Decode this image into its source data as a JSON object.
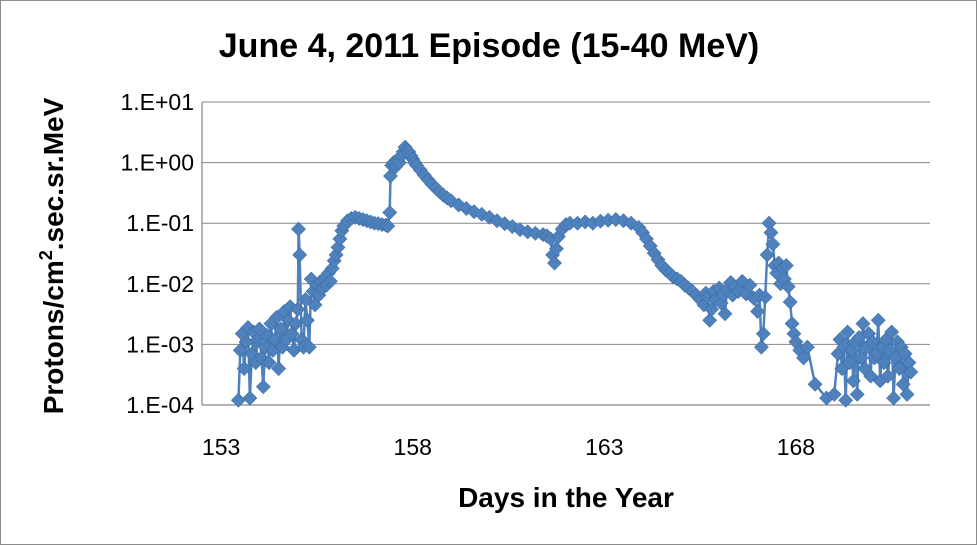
{
  "chart_data": {
    "type": "scatter",
    "title": "June 4, 2011 Episode (15-40 MeV)",
    "xlabel": "Days in the Year",
    "ylabel": "Protons/cm2.sec.sr.MeV",
    "ylabel_parts": {
      "before": "Protons/cm",
      "sup": "2",
      "after": ".sec.sr.MeV"
    },
    "xlim": [
      152.5,
      171.5
    ],
    "ylim": [
      0.0001,
      10
    ],
    "y_scale": "log",
    "x_ticks": [
      {
        "value": 153,
        "label": "153"
      },
      {
        "value": 158,
        "label": "158"
      },
      {
        "value": 163,
        "label": "163"
      },
      {
        "value": 168,
        "label": "168"
      }
    ],
    "y_ticks": [
      {
        "value": 10,
        "label": "1.E+01"
      },
      {
        "value": 1,
        "label": "1.E+00"
      },
      {
        "value": 0.1,
        "label": "1.E-01"
      },
      {
        "value": 0.01,
        "label": "1.E-02"
      },
      {
        "value": 0.001,
        "label": "1.E-03"
      },
      {
        "value": 0.0001,
        "label": "1.E-04"
      }
    ],
    "grid": {
      "horizontal": true,
      "vertical": false
    },
    "legend": "none",
    "series_color": "#4f81bd",
    "series": [
      {
        "values": [
          [
            153.45,
            0.00012
          ],
          [
            153.5,
            0.0008
          ],
          [
            153.55,
            0.0015
          ],
          [
            153.6,
            0.0004
          ],
          [
            153.65,
            0.0011
          ],
          [
            153.7,
            0.0019
          ],
          [
            153.75,
            0.00013
          ],
          [
            153.8,
            0.0007
          ],
          [
            153.85,
            0.0016
          ],
          [
            153.9,
            0.0005
          ],
          [
            153.95,
            0.0012
          ],
          [
            154.0,
            0.0018
          ],
          [
            154.05,
            0.0006
          ],
          [
            154.1,
            0.0002
          ],
          [
            154.15,
            0.0009
          ],
          [
            154.2,
            0.0014
          ],
          [
            154.25,
            0.0005
          ],
          [
            154.3,
            0.0022
          ],
          [
            154.35,
            0.0008
          ],
          [
            154.4,
            0.0012
          ],
          [
            154.45,
            0.0028
          ],
          [
            154.5,
            0.0004
          ],
          [
            154.55,
            0.0018
          ],
          [
            154.6,
            0.0009
          ],
          [
            154.65,
            0.0035
          ],
          [
            154.7,
            0.0012
          ],
          [
            154.75,
            0.0025
          ],
          [
            154.8,
            0.0042
          ],
          [
            154.85,
            0.0015
          ],
          [
            154.9,
            0.0008
          ],
          [
            154.95,
            0.0022
          ],
          [
            155.0,
            0.0038
          ],
          [
            155.02,
            0.08
          ],
          [
            155.05,
            0.03
          ],
          [
            155.1,
            0.0012
          ],
          [
            155.15,
            0.0009
          ],
          [
            155.2,
            0.0055
          ],
          [
            155.25,
            0.0025
          ],
          [
            155.3,
            0.0009
          ],
          [
            155.35,
            0.012
          ],
          [
            155.4,
            0.0075
          ],
          [
            155.45,
            0.0045
          ],
          [
            155.5,
            0.0095
          ],
          [
            155.55,
            0.0065
          ],
          [
            155.6,
            0.011
          ],
          [
            155.65,
            0.0085
          ],
          [
            155.7,
            0.012
          ],
          [
            155.75,
            0.0095
          ],
          [
            155.8,
            0.015
          ],
          [
            155.85,
            0.011
          ],
          [
            155.9,
            0.018
          ],
          [
            155.95,
            0.024
          ],
          [
            156.0,
            0.03
          ],
          [
            156.05,
            0.04
          ],
          [
            156.1,
            0.055
          ],
          [
            156.15,
            0.075
          ],
          [
            156.2,
            0.09
          ],
          [
            156.3,
            0.11
          ],
          [
            156.4,
            0.12
          ],
          [
            156.5,
            0.125
          ],
          [
            156.6,
            0.12
          ],
          [
            156.7,
            0.115
          ],
          [
            156.8,
            0.11
          ],
          [
            156.9,
            0.105
          ],
          [
            157.0,
            0.1
          ],
          [
            157.1,
            0.098
          ],
          [
            157.2,
            0.095
          ],
          [
            157.3,
            0.093
          ],
          [
            157.35,
            0.09
          ],
          [
            157.4,
            0.15
          ],
          [
            157.42,
            0.6
          ],
          [
            157.45,
            0.9
          ],
          [
            157.5,
            1.0
          ],
          [
            157.55,
            0.85
          ],
          [
            157.6,
            1.1
          ],
          [
            157.65,
            1.0
          ],
          [
            157.7,
            1.3
          ],
          [
            157.75,
            1.5
          ],
          [
            157.8,
            1.8
          ],
          [
            157.85,
            1.6
          ],
          [
            157.9,
            1.5
          ],
          [
            157.95,
            1.3
          ],
          [
            158.0,
            1.15
          ],
          [
            158.05,
            1.0
          ],
          [
            158.1,
            0.9
          ],
          [
            158.2,
            0.75
          ],
          [
            158.3,
            0.62
          ],
          [
            158.4,
            0.52
          ],
          [
            158.5,
            0.44
          ],
          [
            158.6,
            0.38
          ],
          [
            158.7,
            0.33
          ],
          [
            158.8,
            0.29
          ],
          [
            158.9,
            0.26
          ],
          [
            159.0,
            0.235
          ],
          [
            159.2,
            0.2
          ],
          [
            159.4,
            0.175
          ],
          [
            159.6,
            0.155
          ],
          [
            159.8,
            0.14
          ],
          [
            160.0,
            0.125
          ],
          [
            160.2,
            0.11
          ],
          [
            160.4,
            0.098
          ],
          [
            160.6,
            0.088
          ],
          [
            160.8,
            0.078
          ],
          [
            161.0,
            0.072
          ],
          [
            161.2,
            0.068
          ],
          [
            161.4,
            0.065
          ],
          [
            161.5,
            0.062
          ],
          [
            161.6,
            0.055
          ],
          [
            161.65,
            0.03
          ],
          [
            161.7,
            0.022
          ],
          [
            161.75,
            0.038
          ],
          [
            161.8,
            0.06
          ],
          [
            161.9,
            0.08
          ],
          [
            162.0,
            0.095
          ],
          [
            162.1,
            0.1
          ],
          [
            162.3,
            0.1
          ],
          [
            162.5,
            0.105
          ],
          [
            162.7,
            0.1
          ],
          [
            162.9,
            0.108
          ],
          [
            163.1,
            0.112
          ],
          [
            163.3,
            0.115
          ],
          [
            163.5,
            0.11
          ],
          [
            163.7,
            0.1
          ],
          [
            163.9,
            0.085
          ],
          [
            164.0,
            0.07
          ],
          [
            164.1,
            0.055
          ],
          [
            164.2,
            0.042
          ],
          [
            164.3,
            0.032
          ],
          [
            164.4,
            0.025
          ],
          [
            164.5,
            0.02
          ],
          [
            164.6,
            0.017
          ],
          [
            164.7,
            0.015
          ],
          [
            164.8,
            0.013
          ],
          [
            164.9,
            0.012
          ],
          [
            165.0,
            0.011
          ],
          [
            165.1,
            0.0095
          ],
          [
            165.2,
            0.0085
          ],
          [
            165.3,
            0.0075
          ],
          [
            165.4,
            0.0065
          ],
          [
            165.5,
            0.0055
          ],
          [
            165.6,
            0.0045
          ],
          [
            165.65,
            0.007
          ],
          [
            165.7,
            0.006
          ],
          [
            165.75,
            0.0025
          ],
          [
            165.8,
            0.0038
          ],
          [
            165.85,
            0.0075
          ],
          [
            165.9,
            0.0055
          ],
          [
            166.0,
            0.0085
          ],
          [
            166.05,
            0.0048
          ],
          [
            166.1,
            0.0065
          ],
          [
            166.15,
            0.0032
          ],
          [
            166.2,
            0.008
          ],
          [
            166.3,
            0.0105
          ],
          [
            166.35,
            0.0065
          ],
          [
            166.4,
            0.009
          ],
          [
            166.5,
            0.0075
          ],
          [
            166.6,
            0.011
          ],
          [
            166.7,
            0.0068
          ],
          [
            166.8,
            0.0095
          ],
          [
            166.9,
            0.0058
          ],
          [
            167.0,
            0.0035
          ],
          [
            167.05,
            0.0065
          ],
          [
            167.1,
            0.0009
          ],
          [
            167.15,
            0.0015
          ],
          [
            167.2,
            0.006
          ],
          [
            167.25,
            0.03
          ],
          [
            167.3,
            0.1
          ],
          [
            167.35,
            0.07
          ],
          [
            167.4,
            0.045
          ],
          [
            167.45,
            0.02
          ],
          [
            167.5,
            0.015
          ],
          [
            167.55,
            0.022
          ],
          [
            167.6,
            0.01
          ],
          [
            167.65,
            0.018
          ],
          [
            167.7,
            0.012
          ],
          [
            167.75,
            0.02
          ],
          [
            167.8,
            0.009
          ],
          [
            167.85,
            0.005
          ],
          [
            167.9,
            0.0022
          ],
          [
            167.95,
            0.0015
          ],
          [
            168.0,
            0.0011
          ],
          [
            168.1,
            0.0008
          ],
          [
            168.2,
            0.0006
          ],
          [
            168.3,
            0.0009
          ],
          [
            168.5,
            0.00022
          ],
          [
            168.8,
            0.00013
          ],
          [
            169.0,
            0.00015
          ],
          [
            169.1,
            0.0007
          ],
          [
            169.15,
            0.0012
          ],
          [
            169.2,
            0.0004
          ],
          [
            169.25,
            0.0009
          ],
          [
            169.3,
            0.00012
          ],
          [
            169.35,
            0.0016
          ],
          [
            169.4,
            0.0005
          ],
          [
            169.45,
            0.0008
          ],
          [
            169.5,
            0.00025
          ],
          [
            169.55,
            0.0011
          ],
          [
            169.6,
            0.00015
          ],
          [
            169.65,
            0.0013
          ],
          [
            169.7,
            0.0006
          ],
          [
            169.75,
            0.0022
          ],
          [
            169.8,
            0.0004
          ],
          [
            169.85,
            0.0009
          ],
          [
            169.9,
            0.0015
          ],
          [
            169.95,
            0.0003
          ],
          [
            170.0,
            0.0011
          ],
          [
            170.05,
            0.0006
          ],
          [
            170.1,
            0.0007
          ],
          [
            170.15,
            0.0025
          ],
          [
            170.2,
            0.00025
          ],
          [
            170.25,
            0.0009
          ],
          [
            170.3,
            0.0005
          ],
          [
            170.35,
            0.0012
          ],
          [
            170.4,
            0.0003
          ],
          [
            170.45,
            0.0008
          ],
          [
            170.5,
            0.0016
          ],
          [
            170.55,
            0.00013
          ],
          [
            170.6,
            0.0006
          ],
          [
            170.65,
            0.0011
          ],
          [
            170.7,
            0.0004
          ],
          [
            170.75,
            0.0009
          ],
          [
            170.8,
            0.00022
          ],
          [
            170.85,
            0.0007
          ],
          [
            170.9,
            0.00015
          ],
          [
            170.95,
            0.0005
          ],
          [
            171.0,
            0.00035
          ]
        ]
      }
    ]
  }
}
